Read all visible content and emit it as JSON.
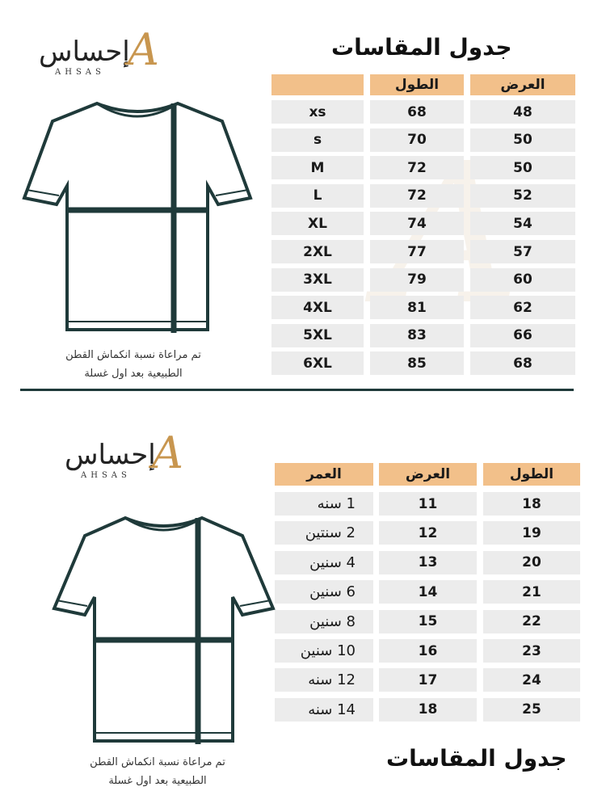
{
  "brand": {
    "name_ar": "إحساس",
    "name_en": "AHSAS",
    "accent": "#f2c08a",
    "shirt_color": "#1f3a3a"
  },
  "adult": {
    "title": "جدول المقاسات",
    "headers": [
      "",
      "الطول",
      "العرض"
    ],
    "rows": [
      [
        "xs",
        "68",
        "48"
      ],
      [
        "s",
        "70",
        "50"
      ],
      [
        "M",
        "72",
        "50"
      ],
      [
        "L",
        "72",
        "52"
      ],
      [
        "XL",
        "74",
        "54"
      ],
      [
        "2XL",
        "77",
        "57"
      ],
      [
        "3XL",
        "79",
        "60"
      ],
      [
        "4XL",
        "81",
        "62"
      ],
      [
        "5XL",
        "83",
        "66"
      ],
      [
        "6XL",
        "85",
        "68"
      ]
    ],
    "note_line1": "تم مراعاة نسبة انكماش القطن",
    "note_line2": "الطبيعية بعد اول غسلة"
  },
  "kids": {
    "title": "جدول المقاسات",
    "headers": [
      "العمر",
      "العرض",
      "الطول"
    ],
    "rows": [
      [
        "1 سنه",
        "11",
        "18"
      ],
      [
        "2 سنتين",
        "12",
        "19"
      ],
      [
        "4 سنين",
        "13",
        "20"
      ],
      [
        "6 سنين",
        "14",
        "21"
      ],
      [
        "8 سنين",
        "15",
        "22"
      ],
      [
        "10 سنين",
        "16",
        "23"
      ],
      [
        "12 سنه",
        "17",
        "24"
      ],
      [
        "14 سنه",
        "18",
        "25"
      ]
    ],
    "note_line1": "تم مراعاة نسبة انكماش القطن",
    "note_line2": "الطبيعية بعد اول غسلة"
  }
}
